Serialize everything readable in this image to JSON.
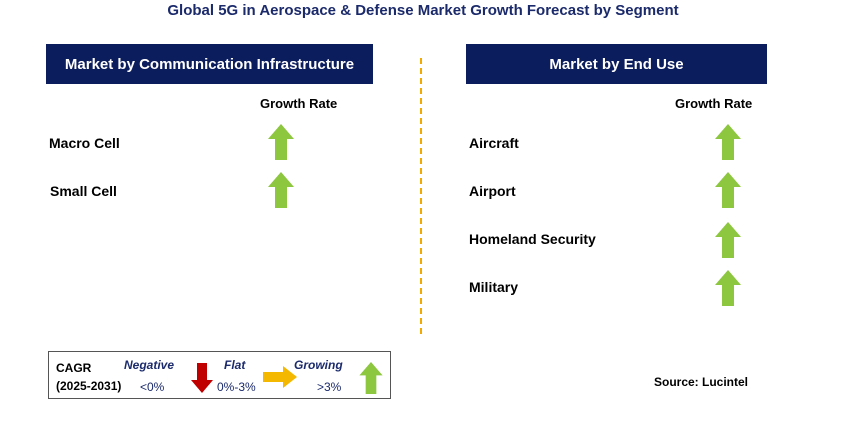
{
  "title": "Global 5G in Aerospace & Defense Market Growth Forecast by Segment",
  "left_panel": {
    "header": "Market by Communication Infrastructure",
    "growth_label": "Growth Rate",
    "items": [
      {
        "label": "Macro Cell",
        "trend": "growing"
      },
      {
        "label": "Small Cell",
        "trend": "growing"
      }
    ]
  },
  "right_panel": {
    "header": "Market by End Use",
    "growth_label": "Growth Rate",
    "items": [
      {
        "label": "Aircraft",
        "trend": "growing"
      },
      {
        "label": "Airport",
        "trend": "growing"
      },
      {
        "label": "Homeland Security",
        "trend": "growing"
      },
      {
        "label": "Military",
        "trend": "growing"
      }
    ]
  },
  "legend": {
    "cagr_label": "CAGR",
    "period": "(2025-2031)",
    "negative": {
      "label": "Negative",
      "range": "<0%"
    },
    "flat": {
      "label": "Flat",
      "range": "0%-3%"
    },
    "growing": {
      "label": "Growing",
      "range": ">3%"
    }
  },
  "source": "Source: Lucintel",
  "colors": {
    "header_bg": "#0c1d5e",
    "growing_arrow": "#8dc63f",
    "negative_arrow": "#c00000",
    "flat_arrow": "#f5b800",
    "divider": "#f2a900"
  }
}
